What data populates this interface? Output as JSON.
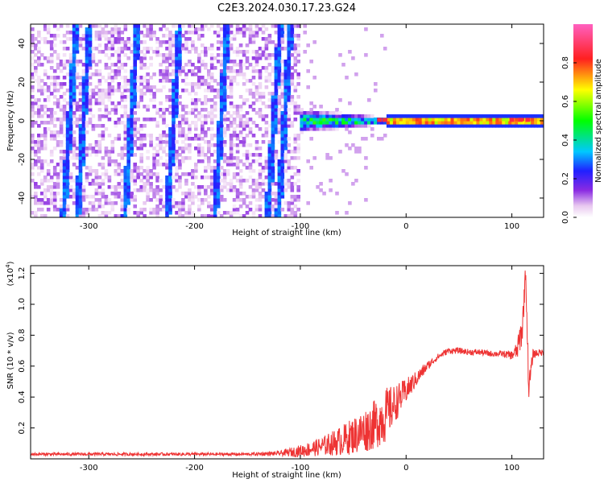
{
  "title": "C2E3.2024.030.17.23.G24",
  "chart_data": [
    {
      "type": "heatmap",
      "xlabel": "Height of straight line (km)",
      "ylabel": "Frequency (Hz)",
      "xlim": [
        -355,
        130
      ],
      "ylim": [
        -50,
        50
      ],
      "x_ticks": [
        -300,
        -200,
        -100,
        0,
        100
      ],
      "y_ticks": [
        -40,
        -20,
        0,
        20,
        40
      ],
      "colorbar": {
        "label": "Normalized spectral amplitude",
        "range": [
          0.0,
          1.0
        ],
        "ticks": [
          "0.0",
          "0.2",
          "0.4",
          "0.6",
          "0.8"
        ],
        "colormap": "rainbow (white-purple-blue-cyan-green-yellow-red-pink)"
      },
      "features": {
        "diagonal_streaks_x": [
          -318,
          -305,
          -260,
          -220,
          -175,
          -125,
          -115
        ],
        "noise_region_x": [
          -355,
          -100
        ],
        "noise_amplitude": 0.15,
        "spread_region_x": [
          -130,
          -20
        ],
        "spread_amplitude": 0.5,
        "carrier_region_x": [
          -20,
          130
        ],
        "carrier_frequency": 0,
        "carrier_amplitude": 0.8,
        "hot_spots_x": [
          -25,
          -20,
          100,
          108,
          115
        ]
      }
    },
    {
      "type": "line",
      "xlabel": "Height of straight line (km)",
      "ylabel": "SNR (10 * v/v)",
      "y_multiplier": "(x10^4)",
      "y_multiplier_base": "(x10",
      "y_multiplier_exp": "4",
      "xlim": [
        -355,
        130
      ],
      "ylim": [
        0,
        1.25
      ],
      "x_ticks": [
        -300,
        -200,
        -100,
        0,
        100
      ],
      "y_ticks": [
        "0.2",
        "0.4",
        "0.6",
        "0.8",
        "1.0",
        "1.2"
      ],
      "series_color": "#ee3333",
      "series": [
        {
          "x": [
            -355,
            -300,
            -250,
            -200,
            -150,
            -120,
            -100,
            -80,
            -60,
            -40,
            -30,
            -20,
            -10,
            0,
            10,
            20,
            30,
            40,
            50,
            60,
            70,
            80,
            90,
            100,
            105,
            110,
            113,
            116,
            120,
            130
          ],
          "y": [
            0.03,
            0.03,
            0.03,
            0.03,
            0.03,
            0.035,
            0.05,
            0.08,
            0.12,
            0.18,
            0.22,
            0.28,
            0.36,
            0.44,
            0.52,
            0.6,
            0.66,
            0.7,
            0.7,
            0.69,
            0.69,
            0.68,
            0.68,
            0.67,
            0.7,
            0.85,
            1.22,
            0.45,
            0.68,
            0.69
          ],
          "noise": [
            0.01,
            0.01,
            0.01,
            0.01,
            0.01,
            0.015,
            0.04,
            0.06,
            0.1,
            0.14,
            0.16,
            0.18,
            0.12,
            0.08,
            0.05,
            0.03,
            0.02,
            0.02,
            0.02,
            0.02,
            0.02,
            0.02,
            0.02,
            0.03,
            0.06,
            0.12,
            0.05,
            0.1,
            0.03,
            0.02
          ]
        }
      ]
    }
  ]
}
